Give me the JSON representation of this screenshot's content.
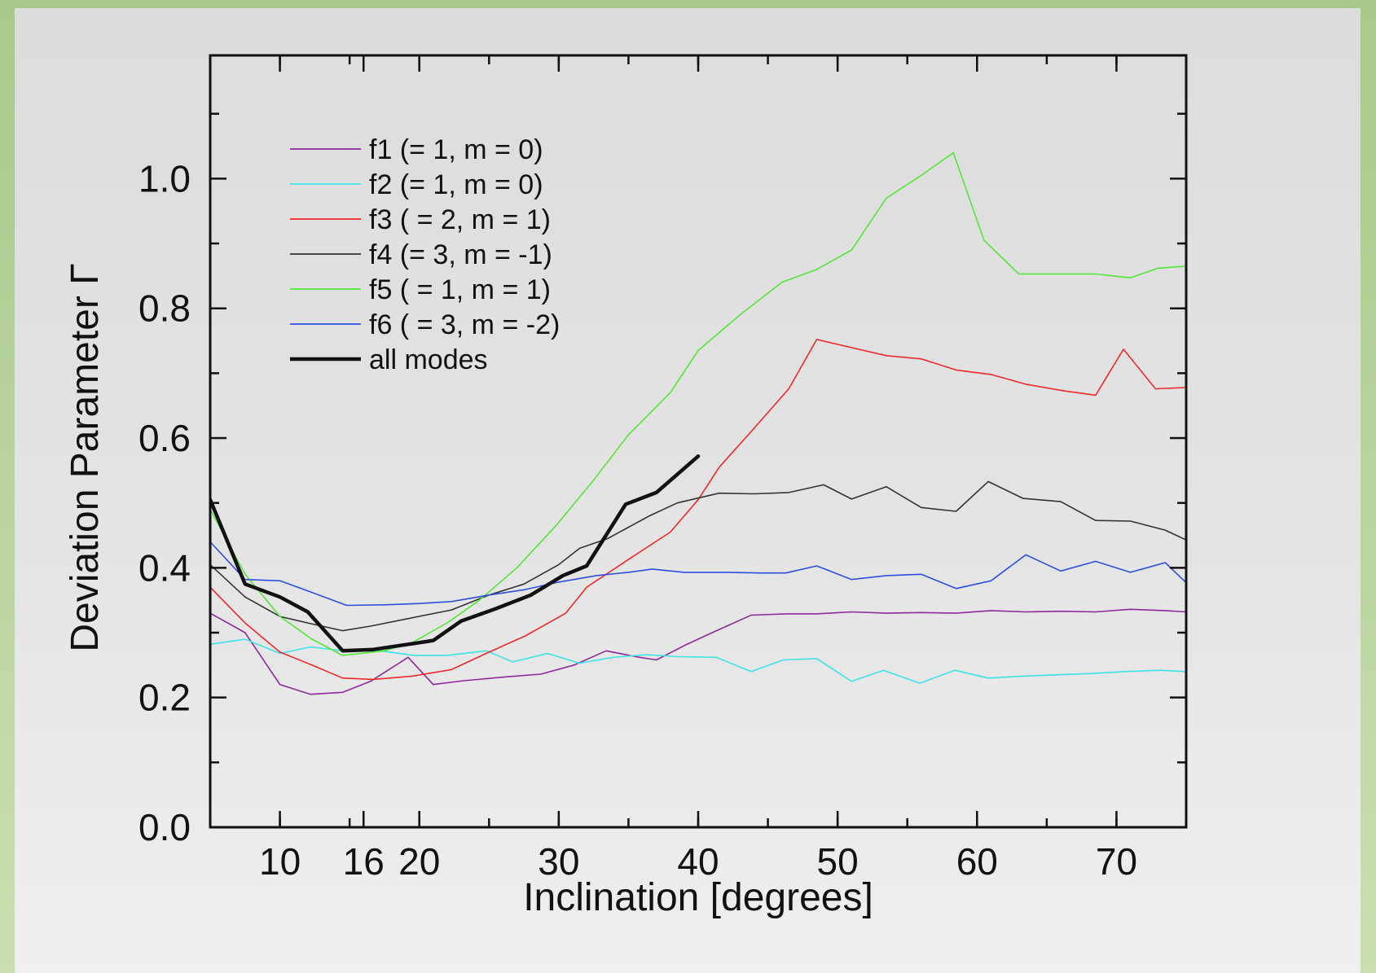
{
  "chart_data": {
    "type": "line",
    "title": "",
    "xlabel": "Inclination [degrees]",
    "ylabel": "Deviation Parameter Γ",
    "xlim": [
      5,
      75
    ],
    "ylim": [
      0,
      1.19
    ],
    "x_ticks": [
      10,
      16,
      20,
      30,
      40,
      50,
      60,
      70
    ],
    "y_ticks": [
      0.0,
      0.2,
      0.4,
      0.6,
      0.8,
      1.0
    ],
    "y_tick_labels": [
      "0.0",
      "0.2",
      "0.4",
      "0.6",
      "0.8",
      "1.0"
    ],
    "grid": false,
    "legend": "top-left",
    "series": [
      {
        "name": "f1 (= 1, m = 0)",
        "color": "#8e2a9c",
        "width": 1.6,
        "x": [
          5,
          7.5,
          10,
          12.2,
          14.5,
          16.5,
          19.2,
          21,
          23.2,
          26.3,
          28.7,
          31.1,
          33.4,
          35.8,
          37,
          39,
          41,
          43.8,
          46.3,
          48.5,
          51,
          53.5,
          56,
          58.5,
          61,
          63.5,
          66,
          68.5,
          71,
          73.5,
          75
        ],
        "y": [
          0.33,
          0.3,
          0.22,
          0.205,
          0.208,
          0.225,
          0.262,
          0.22,
          0.226,
          0.232,
          0.236,
          0.25,
          0.272,
          0.262,
          0.258,
          0.28,
          0.3,
          0.327,
          0.329,
          0.329,
          0.332,
          0.33,
          0.331,
          0.33,
          0.334,
          0.332,
          0.333,
          0.332,
          0.336,
          0.334,
          0.332
        ]
      },
      {
        "name": "f2 (= 1, m = 0)",
        "color": "#3fe3e6",
        "width": 1.6,
        "x": [
          5,
          7.5,
          10,
          12.2,
          14.5,
          17.2,
          19.6,
          22,
          24.8,
          26.7,
          29.2,
          31.5,
          33.9,
          36.3,
          38.6,
          41.3,
          43.8,
          46.1,
          48.5,
          51,
          53.3,
          55.9,
          58.4,
          60.8,
          63.3,
          65.7,
          68.2,
          70.6,
          73.1,
          75
        ],
        "y": [
          0.282,
          0.29,
          0.268,
          0.278,
          0.272,
          0.272,
          0.265,
          0.265,
          0.272,
          0.255,
          0.268,
          0.253,
          0.262,
          0.266,
          0.263,
          0.262,
          0.24,
          0.258,
          0.26,
          0.225,
          0.242,
          0.222,
          0.242,
          0.23,
          0.233,
          0.235,
          0.237,
          0.24,
          0.242,
          0.24
        ]
      },
      {
        "name": "f3 ( = 2, m = 1)",
        "color": "#ee2a2a",
        "width": 1.6,
        "x": [
          5,
          7.5,
          10,
          12.3,
          14.5,
          16.7,
          19.5,
          22.3,
          25,
          27.6,
          30.5,
          32,
          35.5,
          38,
          40,
          41.5,
          44,
          46.5,
          48.5,
          51.3,
          53.5,
          56,
          58.5,
          61,
          63.5,
          66.2,
          68.5,
          70.5,
          72.8,
          75
        ],
        "y": [
          0.37,
          0.315,
          0.27,
          0.25,
          0.23,
          0.228,
          0.233,
          0.243,
          0.27,
          0.295,
          0.33,
          0.37,
          0.42,
          0.455,
          0.505,
          0.555,
          0.615,
          0.676,
          0.752,
          0.738,
          0.727,
          0.722,
          0.705,
          0.698,
          0.683,
          0.673,
          0.666,
          0.737,
          0.676,
          0.678
        ]
      },
      {
        "name": "f4 (= 3, m = -1)",
        "color": "#333333",
        "width": 1.6,
        "x": [
          5,
          7.5,
          10,
          12,
          14.5,
          16.5,
          19.5,
          22.3,
          25,
          27.5,
          30,
          31.5,
          33.5,
          36.5,
          38.5,
          41.5,
          44,
          46.5,
          49,
          51,
          53.5,
          56,
          58.5,
          60.8,
          63.3,
          66,
          68.5,
          71,
          73.5,
          75
        ],
        "y": [
          0.405,
          0.355,
          0.325,
          0.315,
          0.303,
          0.31,
          0.323,
          0.335,
          0.358,
          0.375,
          0.405,
          0.43,
          0.445,
          0.48,
          0.5,
          0.515,
          0.514,
          0.516,
          0.528,
          0.506,
          0.525,
          0.493,
          0.487,
          0.533,
          0.507,
          0.502,
          0.473,
          0.472,
          0.458,
          0.443
        ]
      },
      {
        "name": "f5 ( = 1, m = 1)",
        "color": "#55e63a",
        "width": 1.6,
        "x": [
          5,
          7.5,
          10,
          12.3,
          14.5,
          17.5,
          19.5,
          22,
          24.3,
          27,
          29.8,
          32.5,
          35,
          38,
          40,
          43,
          46,
          48.5,
          51,
          53.5,
          56,
          58.3,
          60.5,
          63,
          66,
          68.5,
          71,
          73,
          75
        ],
        "y": [
          0.49,
          0.39,
          0.325,
          0.29,
          0.265,
          0.272,
          0.285,
          0.315,
          0.35,
          0.4,
          0.465,
          0.535,
          0.605,
          0.67,
          0.735,
          0.79,
          0.84,
          0.86,
          0.89,
          0.97,
          1.005,
          1.04,
          0.905,
          0.853,
          0.853,
          0.853,
          0.847,
          0.862,
          0.865
        ]
      },
      {
        "name": "f6 ( = 3, m = -2)",
        "color": "#2d4fe0",
        "width": 1.6,
        "x": [
          5,
          7.5,
          10,
          12.3,
          14.8,
          17.5,
          20,
          22.3,
          25,
          27.5,
          30,
          32.7,
          35,
          36.7,
          39,
          42,
          44.5,
          46.3,
          48.5,
          51,
          53.5,
          56,
          58.5,
          61,
          63.5,
          66,
          68.5,
          71,
          73.5,
          75
        ],
        "y": [
          0.44,
          0.382,
          0.38,
          0.362,
          0.342,
          0.343,
          0.345,
          0.348,
          0.358,
          0.366,
          0.378,
          0.388,
          0.393,
          0.398,
          0.393,
          0.393,
          0.392,
          0.392,
          0.403,
          0.382,
          0.388,
          0.39,
          0.368,
          0.38,
          0.42,
          0.395,
          0.41,
          0.393,
          0.408,
          0.377
        ]
      },
      {
        "name": "all modes",
        "color": "#111111",
        "width": 4.5,
        "x": [
          5,
          7.5,
          10,
          12,
          14.5,
          16.7,
          19.8,
          21,
          23,
          25.5,
          28,
          30.3,
          32,
          34.8,
          37,
          40
        ],
        "y": [
          0.505,
          0.375,
          0.355,
          0.332,
          0.272,
          0.274,
          0.284,
          0.288,
          0.318,
          0.337,
          0.358,
          0.388,
          0.403,
          0.498,
          0.516,
          0.572
        ]
      }
    ]
  }
}
